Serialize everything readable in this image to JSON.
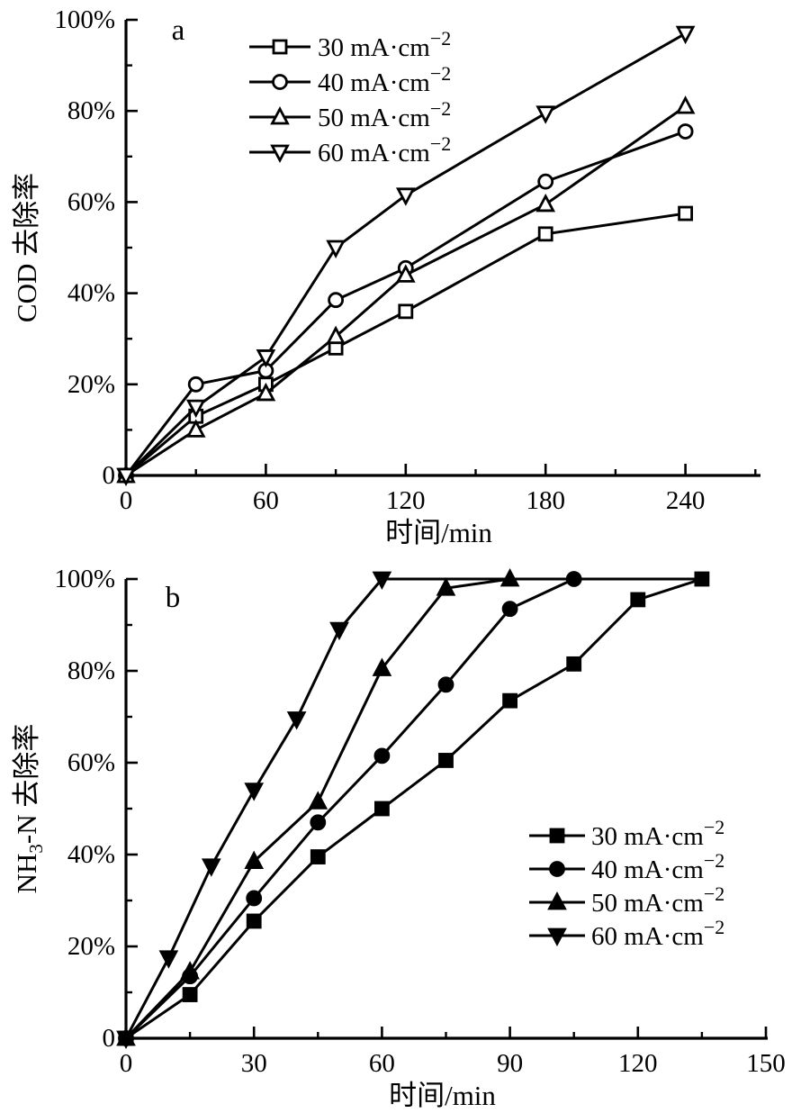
{
  "page": {
    "background": "#ffffff",
    "ink": "#000000"
  },
  "chart_data": [
    {
      "id": "panel_a",
      "type": "line",
      "panel_label": "a",
      "xlabel": "时间/min",
      "ylabel": "COD 去除率",
      "ylabel_parts": [
        {
          "t": "COD 去除率"
        }
      ],
      "xlim": [
        0,
        272
      ],
      "ylim": [
        0,
        100
      ],
      "x_ticks": [
        0,
        60,
        120,
        180,
        240
      ],
      "x_tick_labels": [
        "0",
        "60",
        "120",
        "180",
        "240"
      ],
      "x_minor_ticks": [
        30,
        90,
        150,
        210,
        270
      ],
      "y_ticks": [
        0,
        20,
        40,
        60,
        80,
        100
      ],
      "y_tick_labels": [
        "0",
        "20%",
        "40%",
        "60%",
        "80%",
        "100%"
      ],
      "y_minor_ticks": [
        10,
        30,
        50,
        70,
        90
      ],
      "grid": "off",
      "legend_position": "top-left-inside",
      "series": [
        {
          "label": "30 mA·cm",
          "label_sup": "−2",
          "marker": "square",
          "marker_fill": "open",
          "x": [
            0,
            30,
            60,
            90,
            120,
            180,
            240
          ],
          "y": [
            0,
            13,
            20,
            28,
            36,
            53,
            57.5
          ]
        },
        {
          "label": "40 mA·cm",
          "label_sup": "−2",
          "marker": "circle",
          "marker_fill": "open",
          "x": [
            0,
            30,
            60,
            90,
            120,
            180,
            240
          ],
          "y": [
            0,
            20,
            23,
            38.5,
            45.5,
            64.5,
            75.5
          ]
        },
        {
          "label": "50 mA·cm",
          "label_sup": "−2",
          "marker": "triangle-up",
          "marker_fill": "open",
          "x": [
            0,
            30,
            60,
            90,
            120,
            180,
            240
          ],
          "y": [
            0,
            10,
            18,
            30.5,
            44,
            59.5,
            81
          ]
        },
        {
          "label": "60 mA·cm",
          "label_sup": "−2",
          "marker": "triangle-down",
          "marker_fill": "open",
          "x": [
            0,
            30,
            60,
            90,
            120,
            180,
            240
          ],
          "y": [
            0,
            15,
            26,
            50,
            61.5,
            79.5,
            97
          ]
        }
      ]
    },
    {
      "id": "panel_b",
      "type": "line",
      "panel_label": "b",
      "xlabel": "时间/min",
      "ylabel": "NH3-N 去除率",
      "ylabel_parts": [
        {
          "t": "NH"
        },
        {
          "t": "3",
          "sub": true
        },
        {
          "t": "-N 去除率"
        }
      ],
      "xlim": [
        0,
        151
      ],
      "ylim": [
        0,
        100
      ],
      "x_ticks": [
        0,
        30,
        60,
        90,
        120,
        150
      ],
      "x_tick_labels": [
        "0",
        "30",
        "60",
        "90",
        "120",
        "150"
      ],
      "x_minor_ticks": [
        15,
        45,
        75,
        105,
        135
      ],
      "y_ticks": [
        0,
        20,
        40,
        60,
        80,
        100
      ],
      "y_tick_labels": [
        "0",
        "20%",
        "40%",
        "60%",
        "80%",
        "100%"
      ],
      "y_minor_ticks": [
        10,
        30,
        50,
        70,
        90
      ],
      "grid": "off",
      "legend_position": "right-middle-inside",
      "series": [
        {
          "label": "30 mA·cm",
          "label_sup": "−2",
          "marker": "square",
          "marker_fill": "solid",
          "x": [
            0,
            15,
            30,
            45,
            60,
            75,
            90,
            105,
            120,
            135
          ],
          "y": [
            0,
            9.5,
            25.5,
            39.5,
            50,
            60.5,
            73.5,
            81.5,
            95.5,
            100
          ]
        },
        {
          "label": "40 mA·cm",
          "label_sup": "−2",
          "marker": "circle",
          "marker_fill": "solid",
          "x": [
            0,
            15,
            30,
            45,
            60,
            75,
            90,
            105
          ],
          "y": [
            0,
            13.5,
            30.5,
            47,
            61.5,
            77,
            93.5,
            100
          ]
        },
        {
          "label": "50 mA·cm",
          "label_sup": "−2",
          "marker": "triangle-up",
          "marker_fill": "solid",
          "x": [
            0,
            15,
            30,
            45,
            60,
            75,
            90
          ],
          "y": [
            0,
            14.5,
            38.5,
            51.5,
            80.5,
            98,
            100
          ]
        },
        {
          "label": "60 mA·cm",
          "label_sup": "−2",
          "marker": "triangle-down",
          "marker_fill": "solid",
          "x": [
            0,
            10,
            20,
            30,
            40,
            50,
            60
          ],
          "y": [
            0,
            17.5,
            37.5,
            54,
            69.5,
            89,
            100
          ],
          "line_extend_x": 135
        }
      ]
    }
  ]
}
